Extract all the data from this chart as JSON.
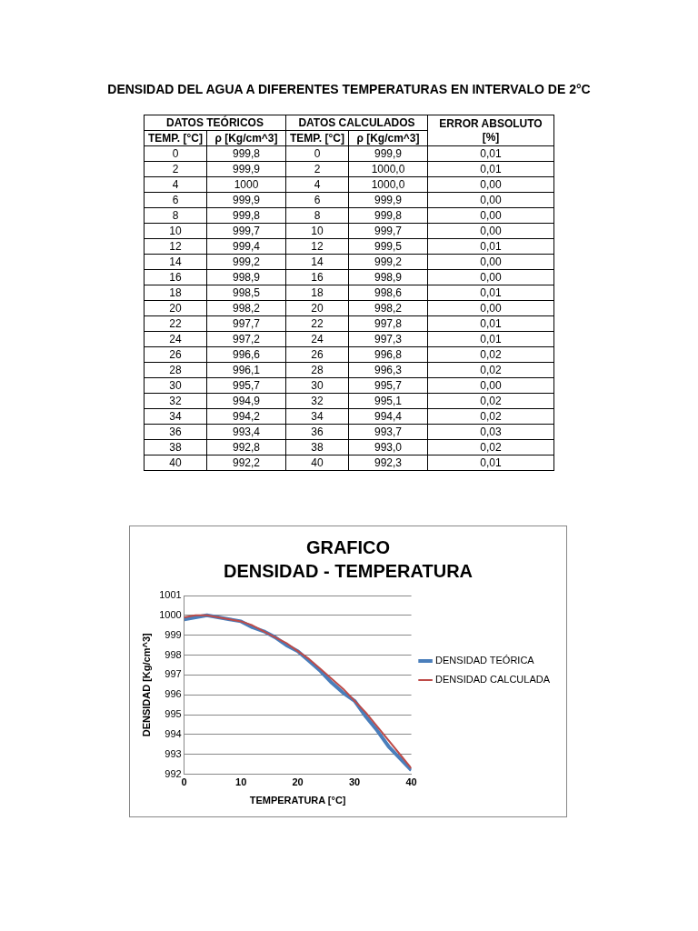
{
  "chart_data": [
    {
      "type": "heatmap",
      "title": "DENSIDAD DEL AGUA A DIFERENTES TEMPERATURAS EN INTERVALO DE 2°C",
      "annotations": [
        "DATOS TEÓRICOS",
        "DATOS CALCULADOS"
      ],
      "ylabel": "TEMP. [°C]",
      "categories": [
        "ρ [Kg/cm^3]",
        "TEMP. [°C]",
        "ρ [Kg/cm^3]",
        "ERROR ABSOLUTO [%]"
      ],
      "y_categories": [
        "0",
        "2",
        "4",
        "6",
        "8",
        "10",
        "12",
        "14",
        "16",
        "18",
        "20",
        "22",
        "24",
        "26",
        "28",
        "30",
        "32",
        "34",
        "36",
        "38",
        "40"
      ],
      "cells": [
        [
          999.8,
          0,
          999.9,
          0.01
        ],
        [
          999.9,
          2,
          1000.0,
          0.01
        ],
        [
          1000,
          4,
          1000.0,
          0
        ],
        [
          999.9,
          6,
          999.9,
          0
        ],
        [
          999.8,
          8,
          999.8,
          0
        ],
        [
          999.7,
          10,
          999.7,
          0
        ],
        [
          999.4,
          12,
          999.5,
          0.01
        ],
        [
          999.2,
          14,
          999.2,
          0
        ],
        [
          998.9,
          16,
          998.9,
          0
        ],
        [
          998.5,
          18,
          998.6,
          0.01
        ],
        [
          998.2,
          20,
          998.2,
          0
        ],
        [
          997.7,
          22,
          997.8,
          0.01
        ],
        [
          997.2,
          24,
          997.3,
          0.01
        ],
        [
          996.6,
          26,
          996.8,
          0.02
        ],
        [
          996.1,
          28,
          996.3,
          0.02
        ],
        [
          995.7,
          30,
          995.7,
          0
        ],
        [
          994.9,
          32,
          995.1,
          0.02
        ],
        [
          994.2,
          34,
          994.4,
          0.02
        ],
        [
          993.4,
          36,
          993.7,
          0.03
        ],
        [
          992.8,
          38,
          993.0,
          0.02
        ],
        [
          992.2,
          40,
          992.3,
          0.01
        ]
      ],
      "cell_labels": [
        [
          "999,8",
          "0",
          "999,9",
          "0,01"
        ],
        [
          "999,9",
          "2",
          "1000,0",
          "0,01"
        ],
        [
          "1000",
          "4",
          "1000,0",
          "0,00"
        ],
        [
          "999,9",
          "6",
          "999,9",
          "0,00"
        ],
        [
          "999,8",
          "8",
          "999,8",
          "0,00"
        ],
        [
          "999,7",
          "10",
          "999,7",
          "0,00"
        ],
        [
          "999,4",
          "12",
          "999,5",
          "0,01"
        ],
        [
          "999,2",
          "14",
          "999,2",
          "0,00"
        ],
        [
          "998,9",
          "16",
          "998,9",
          "0,00"
        ],
        [
          "998,5",
          "18",
          "998,6",
          "0,01"
        ],
        [
          "998,2",
          "20",
          "998,2",
          "0,00"
        ],
        [
          "997,7",
          "22",
          "997,8",
          "0,01"
        ],
        [
          "997,2",
          "24",
          "997,3",
          "0,01"
        ],
        [
          "996,6",
          "26",
          "996,8",
          "0,02"
        ],
        [
          "996,1",
          "28",
          "996,3",
          "0,02"
        ],
        [
          "995,7",
          "30",
          "995,7",
          "0,00"
        ],
        [
          "994,9",
          "32",
          "995,1",
          "0,02"
        ],
        [
          "994,2",
          "34",
          "994,4",
          "0,02"
        ],
        [
          "993,4",
          "36",
          "993,7",
          "0,03"
        ],
        [
          "992,8",
          "38",
          "993,0",
          "0,02"
        ],
        [
          "992,2",
          "40",
          "992,3",
          "0,01"
        ]
      ]
    },
    {
      "type": "line",
      "title": "GRAFICO",
      "subtitle": "DENSIDAD - TEMPERATURA",
      "xlabel": "TEMPERATURA [°C]",
      "ylabel": "DENSIDAD [Kg/cm^3]",
      "x": [
        0,
        2,
        4,
        6,
        8,
        10,
        12,
        14,
        16,
        18,
        20,
        22,
        24,
        26,
        28,
        30,
        32,
        34,
        36,
        38,
        40
      ],
      "series": [
        {
          "name": "DENSIDAD TEÓRICA",
          "color": "#4a7ebb",
          "values": [
            999.8,
            999.9,
            1000,
            999.9,
            999.8,
            999.7,
            999.4,
            999.2,
            998.9,
            998.5,
            998.2,
            997.7,
            997.2,
            996.6,
            996.1,
            995.7,
            994.9,
            994.2,
            993.4,
            992.8,
            992.2
          ]
        },
        {
          "name": "DENSIDAD CALCULADA",
          "color": "#be4b48",
          "values": [
            999.9,
            1000.0,
            1000.0,
            999.9,
            999.8,
            999.7,
            999.5,
            999.2,
            998.9,
            998.6,
            998.2,
            997.8,
            997.3,
            996.8,
            996.3,
            995.7,
            995.1,
            994.4,
            993.7,
            993.0,
            992.3
          ]
        }
      ],
      "xlim": [
        0,
        40
      ],
      "xticks": [
        0,
        10,
        20,
        30,
        40
      ],
      "ylim": [
        992,
        1001
      ],
      "yticks": [
        992,
        993,
        994,
        995,
        996,
        997,
        998,
        999,
        1000,
        1001
      ],
      "grid": "y",
      "legend": "right",
      "marker": "none",
      "line_style": "solid"
    }
  ]
}
